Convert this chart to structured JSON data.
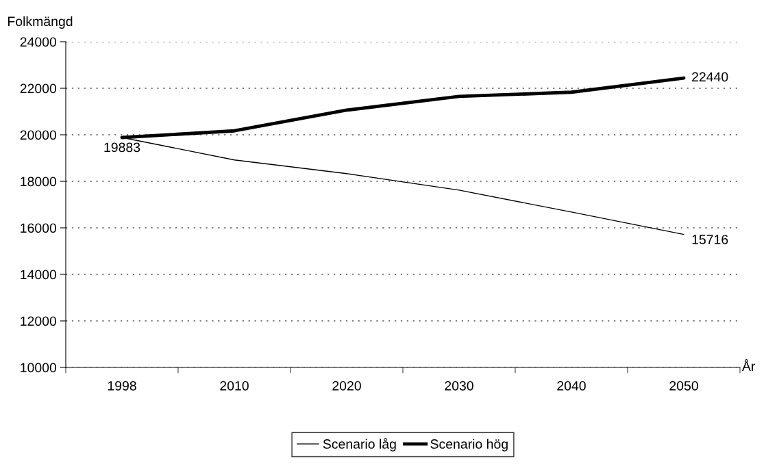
{
  "chart_data": {
    "type": "line",
    "xlabel": "År",
    "ylabel": "Folkmängd",
    "categories": [
      "1998",
      "2010",
      "2020",
      "2030",
      "2040",
      "2050"
    ],
    "series": [
      {
        "name": "Scenario låg",
        "color": "#000000",
        "values": [
          19883,
          18920,
          18330,
          17620,
          16680,
          15716
        ],
        "value_labels": [
          null,
          null,
          null,
          null,
          null,
          "15716"
        ]
      },
      {
        "name": "Scenario hög",
        "color": "#000000",
        "values": [
          19883,
          20170,
          21060,
          21650,
          21830,
          22440
        ],
        "value_labels": [
          "19883",
          null,
          null,
          null,
          null,
          "22440"
        ]
      }
    ],
    "ylim": [
      10000,
      24000
    ],
    "yticks": [
      10000,
      12000,
      14000,
      16000,
      18000,
      20000,
      22000,
      24000
    ],
    "grid": "y",
    "legend": "bottom",
    "marker": "none",
    "line_style": "solid"
  }
}
